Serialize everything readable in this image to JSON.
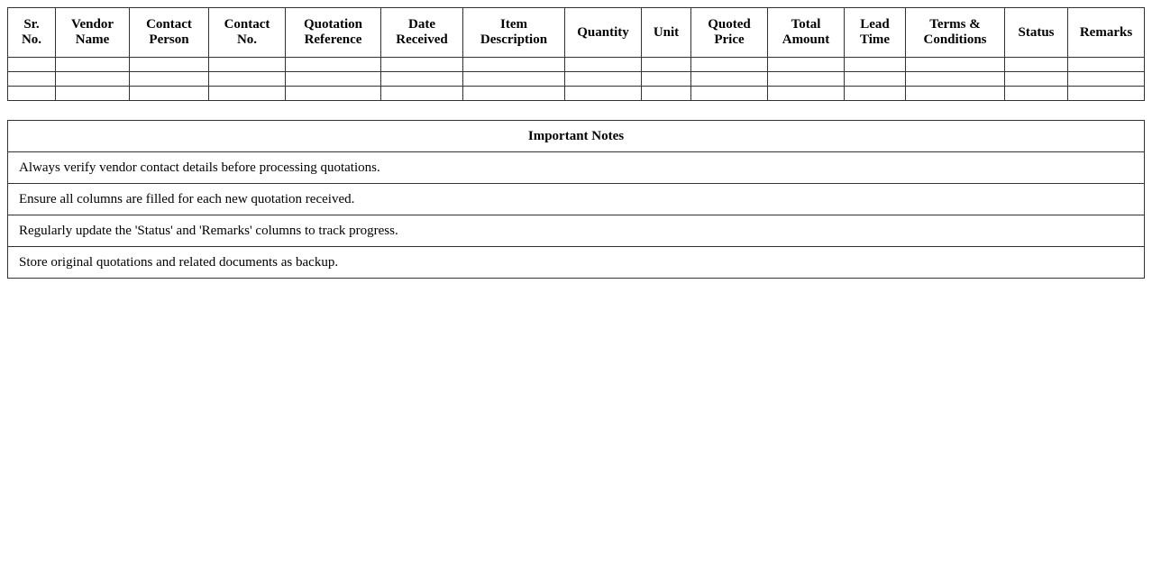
{
  "quotation_table": {
    "columns": [
      {
        "id": "sr-no",
        "lines": [
          "Sr.",
          "No."
        ]
      },
      {
        "id": "vendor-name",
        "lines": [
          "Vendor",
          "Name"
        ]
      },
      {
        "id": "contact-person",
        "lines": [
          "Contact",
          "Person"
        ]
      },
      {
        "id": "contact-no",
        "lines": [
          "Contact",
          "No."
        ]
      },
      {
        "id": "quotation-reference",
        "lines": [
          "Quotation",
          "Reference"
        ]
      },
      {
        "id": "date-received",
        "lines": [
          "Date",
          "Received"
        ]
      },
      {
        "id": "item-description",
        "lines": [
          "Item",
          "Description"
        ]
      },
      {
        "id": "quantity",
        "lines": [
          "Quantity"
        ]
      },
      {
        "id": "unit",
        "lines": [
          "Unit"
        ]
      },
      {
        "id": "quoted-price",
        "lines": [
          "Quoted",
          "Price"
        ]
      },
      {
        "id": "total-amount",
        "lines": [
          "Total",
          "Amount"
        ]
      },
      {
        "id": "lead-time",
        "lines": [
          "Lead",
          "Time"
        ]
      },
      {
        "id": "terms-conditions",
        "lines": [
          "Terms &",
          "Conditions"
        ]
      },
      {
        "id": "status",
        "lines": [
          "Status"
        ]
      },
      {
        "id": "remarks",
        "lines": [
          "Remarks"
        ]
      }
    ],
    "empty_rows": 3
  },
  "notes_table": {
    "title": "Important Notes",
    "notes": [
      "Always verify vendor contact details before processing quotations.",
      "Ensure all columns are filled for each new quotation received.",
      "Regularly update the 'Status' and 'Remarks' columns to track progress.",
      "Store original quotations and related documents as backup."
    ]
  },
  "colors": {
    "background": "#ffffff",
    "border": "#333333",
    "text": "#000000"
  }
}
